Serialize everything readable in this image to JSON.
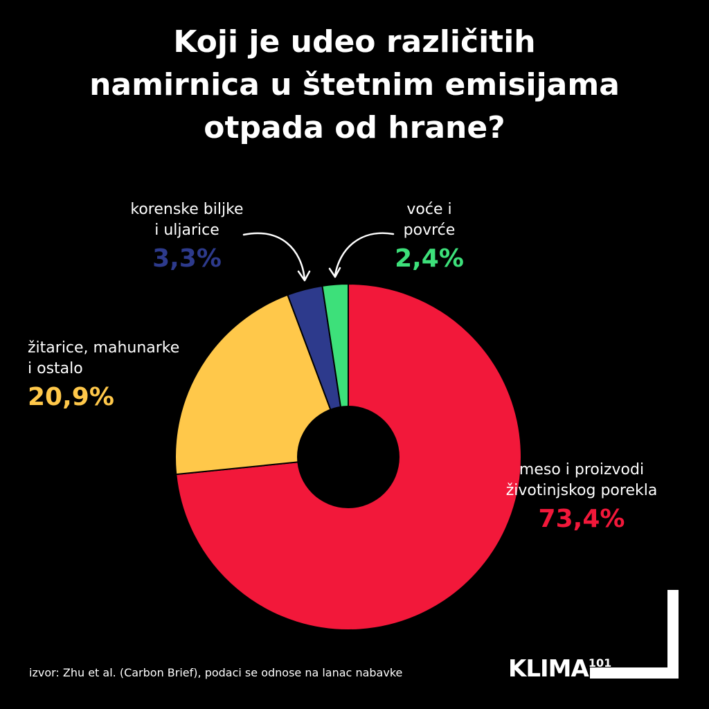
{
  "title_lines": [
    "Koji je udeo različitih",
    "namirnica u štetnim emisijama",
    "otpada od hrane?"
  ],
  "chart_data": {
    "type": "pie",
    "title": "Koji je udeo različitih namirnica u štetnim emisijama otpada od hrane?",
    "donut": true,
    "slices": [
      {
        "label": "meso i proizvodi životinjskog porekla",
        "value": 73.4,
        "value_label": "73,4%",
        "color": "#F2183A"
      },
      {
        "label": "žitarice, mahunarke i ostalo",
        "value": 20.9,
        "value_label": "20,9%",
        "color": "#FFC84A"
      },
      {
        "label": "korenske biljke i uljarice",
        "value": 3.3,
        "value_label": "3,3%",
        "color": "#2D3A8C"
      },
      {
        "label": "voće i povrće",
        "value": 2.4,
        "value_label": "2,4%",
        "color": "#3DE07A"
      }
    ]
  },
  "labels": {
    "meat": {
      "lines": [
        "meso i proizvodi",
        "životinjskog porekla"
      ],
      "pct": "73,4%"
    },
    "grain": {
      "lines": [
        "žitarice, mahunarke",
        "i ostalo"
      ],
      "pct": "20,9%"
    },
    "root": {
      "lines": [
        "korenske biljke",
        "i uljarice"
      ],
      "pct": "3,3%"
    },
    "fruit": {
      "lines": [
        "voće i",
        "povrće"
      ],
      "pct": "2,4%"
    }
  },
  "source": "izvor: Zhu et al. (Carbon Brief), podaci se odnose na lanac nabavke",
  "logo": {
    "text": "KLIMA",
    "suffix": "101"
  },
  "colors": {
    "background": "#000000",
    "text": "#FFFFFF",
    "meat": "#F2183A",
    "grain": "#FFC84A",
    "root": "#2D3A8C",
    "fruit": "#3DE07A"
  }
}
